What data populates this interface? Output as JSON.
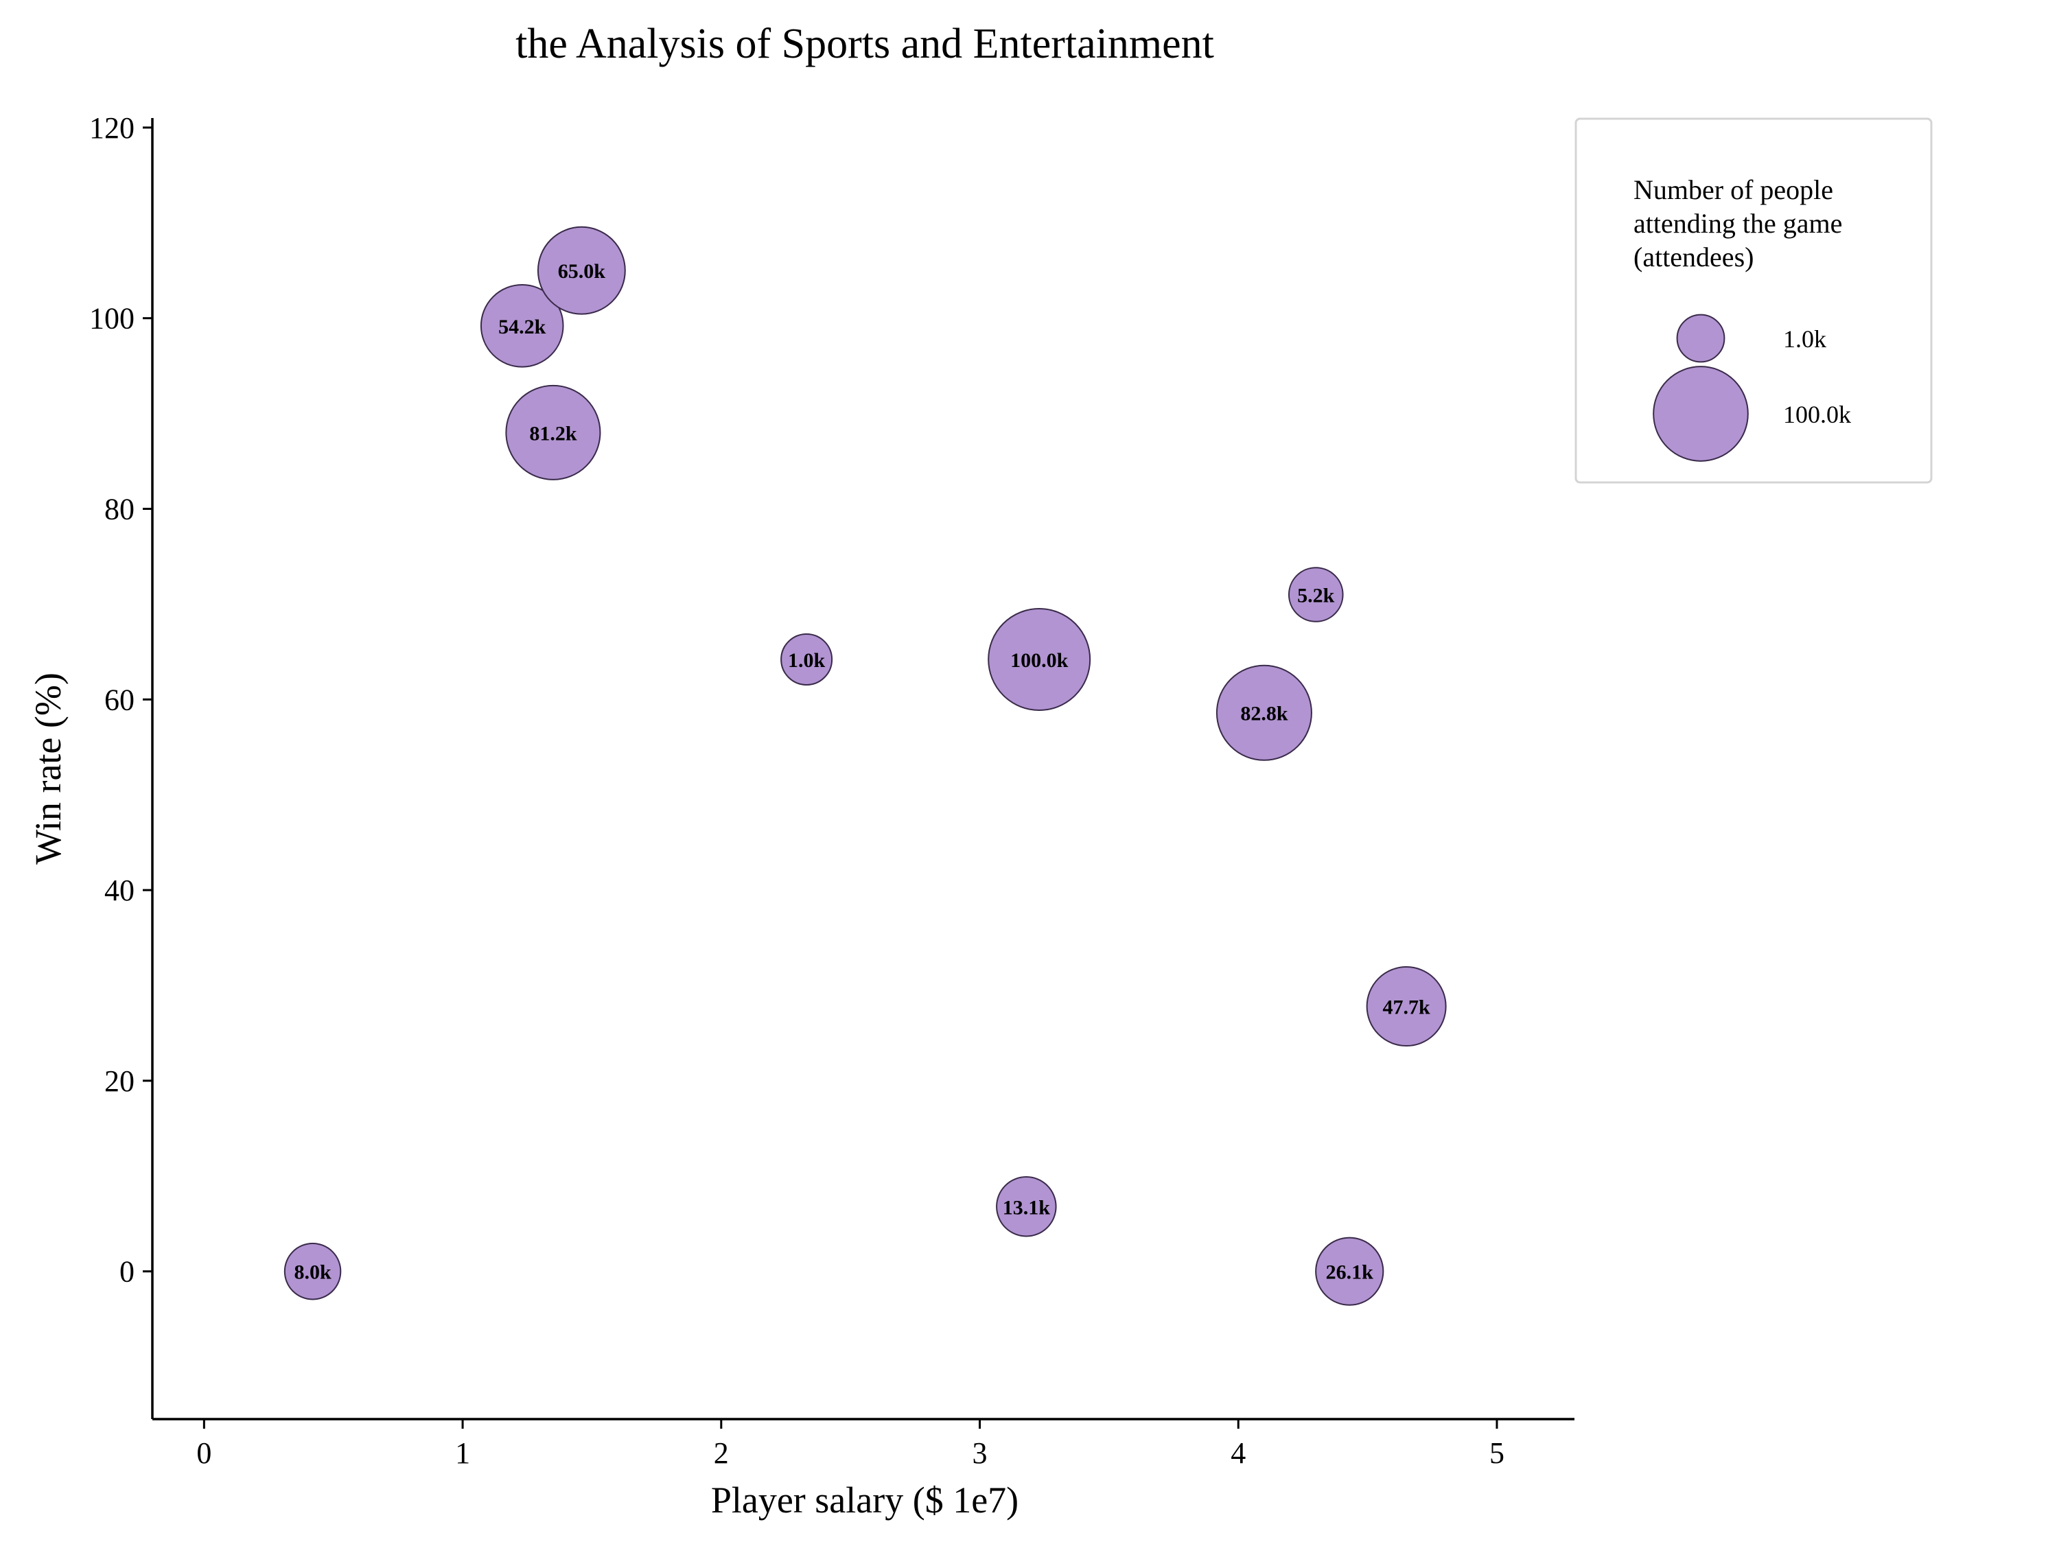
{
  "chart_data": {
    "type": "scatter",
    "title": "the Analysis of Sports and Entertainment",
    "xlabel": "Player salary ($ 1e7)",
    "ylabel": "Win rate (%)",
    "xlim": [
      -0.2,
      5.3
    ],
    "ylim": [
      -15.5,
      121
    ],
    "xticks": [
      0,
      1,
      2,
      3,
      4,
      5
    ],
    "yticks": [
      0,
      20,
      40,
      60,
      80,
      100,
      120
    ],
    "grid": false,
    "bubble_color": "#b194d1",
    "bubble_edge": "#3a2a4a",
    "size_range": [
      1.0,
      100.0
    ],
    "points": [
      {
        "x": 0.42,
        "y": 0.0,
        "size": 8.0,
        "label": "8.0k"
      },
      {
        "x": 1.23,
        "y": 99.2,
        "size": 54.2,
        "label": "54.2k"
      },
      {
        "x": 1.46,
        "y": 105.0,
        "size": 65.0,
        "label": "65.0k"
      },
      {
        "x": 1.35,
        "y": 88.0,
        "size": 81.2,
        "label": "81.2k"
      },
      {
        "x": 2.33,
        "y": 64.2,
        "size": 1.0,
        "label": "1.0k"
      },
      {
        "x": 3.23,
        "y": 64.2,
        "size": 100.0,
        "label": "100.0k"
      },
      {
        "x": 4.3,
        "y": 71.0,
        "size": 5.2,
        "label": "5.2k"
      },
      {
        "x": 4.1,
        "y": 58.6,
        "size": 82.8,
        "label": "82.8k"
      },
      {
        "x": 4.65,
        "y": 27.8,
        "size": 47.7,
        "label": "47.7k"
      },
      {
        "x": 3.18,
        "y": 6.8,
        "size": 13.1,
        "label": "13.1k"
      },
      {
        "x": 4.43,
        "y": 0.0,
        "size": 26.1,
        "label": "26.1k"
      }
    ],
    "legend": {
      "position": "top-right",
      "title_lines": [
        "Number of people",
        "attending the game",
        "(attendees)"
      ],
      "entries": [
        {
          "size": 1.0,
          "label": "1.0k"
        },
        {
          "size": 100.0,
          "label": "100.0k"
        }
      ]
    }
  }
}
